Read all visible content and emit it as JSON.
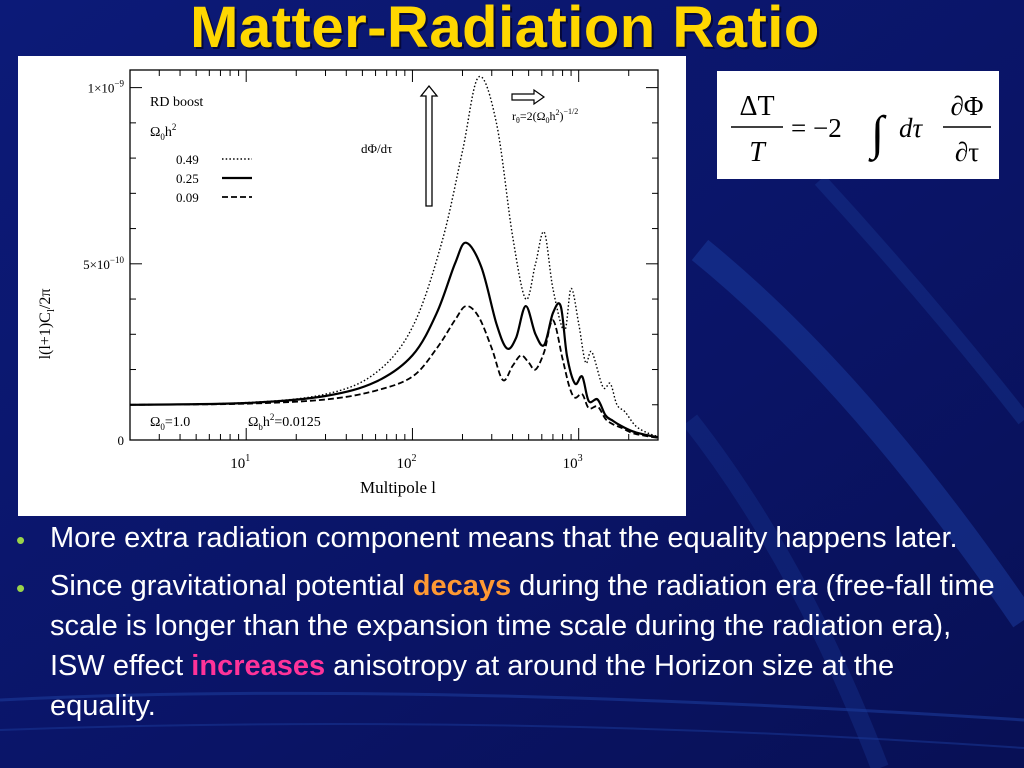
{
  "slide": {
    "title": "Matter-Radiation Ratio",
    "colors": {
      "background": "#0a1466",
      "title": "#ffd700",
      "highlight_decays": "#ff9933",
      "highlight_increases": "#ff3399",
      "bullet": "#9ad34a"
    }
  },
  "equation": {
    "lhs_num": "ΔT",
    "lhs_den": "T",
    "equals": "= −2",
    "integral": "∫",
    "dtau": "dτ",
    "rhs_num": "∂Φ",
    "rhs_den": "∂τ"
  },
  "chart_data": {
    "type": "line",
    "xlabel": "Multipole  l",
    "ylabel": "l(l+1)C",
    "ylabel_sub": "l",
    "ylabel_suffix": "/2π",
    "x_scale": "log",
    "xlim": [
      2,
      3000
    ],
    "ylim": [
      0,
      1.05e-09
    ],
    "x_ticks": [
      {
        "value": 10,
        "base": "10",
        "exp": "1"
      },
      {
        "value": 100,
        "base": "10",
        "exp": "2"
      },
      {
        "value": 1000,
        "base": "10",
        "exp": "3"
      }
    ],
    "y_ticks": [
      {
        "value": 0,
        "mantissa": "0",
        "exp": ""
      },
      {
        "value": 5e-10,
        "mantissa": "5×10",
        "exp": "−10"
      },
      {
        "value": 1e-09,
        "mantissa": "1×10",
        "exp": "−9"
      }
    ],
    "annotations": {
      "rd_boost": "RD  boost",
      "omega_h2_header": "Ω",
      "omega_h2_header_sub": "0",
      "omega_h2_header_rest": "h",
      "omega_h2_header_sup": "2",
      "dphi": "dΦ/dτ",
      "r_theta": "r",
      "r_theta_sub": "θ",
      "r_theta_eq": "=2(Ω",
      "r_theta_sub2": "0",
      "r_theta_h": "h",
      "r_theta_sup": "2",
      "r_theta_close": ")",
      "r_theta_exp": "−1/2",
      "omega0": "Ω",
      "omega0_sub": "0",
      "omega0_val": "=1.0",
      "omegab": "Ω",
      "omegab_sub": "b",
      "omegab_h": "h",
      "omegab_sup": "2",
      "omegab_val": "=0.0125"
    },
    "series": [
      {
        "name": "0.49",
        "dash": "dotted",
        "x": [
          2,
          10,
          30,
          60,
          100,
          150,
          200,
          250,
          320,
          400,
          480,
          550,
          620,
          700,
          820,
          900,
          1000,
          1100,
          1200,
          1400,
          1550,
          1700,
          1900,
          2200,
          2600,
          3000
        ],
        "y": [
          1e-10,
          1.06e-10,
          1.3e-10,
          1.9e-10,
          3.2e-10,
          5.6e-10,
          8.2e-10,
          1.03e-09,
          9e-10,
          5.8e-10,
          4e-10,
          5e-10,
          5.9e-10,
          4.3e-10,
          3.1e-10,
          4.3e-10,
          3.3e-10,
          2.2e-10,
          2.5e-10,
          1.5e-10,
          1.6e-10,
          1e-10,
          8e-11,
          4e-11,
          2e-11,
          1e-11
        ]
      },
      {
        "name": "0.25",
        "dash": "solid",
        "x": [
          2,
          10,
          30,
          60,
          100,
          140,
          180,
          210,
          260,
          320,
          370,
          420,
          480,
          550,
          620,
          700,
          780,
          850,
          950,
          1050,
          1150,
          1300,
          1450,
          1600,
          1800,
          2100,
          2500,
          3000
        ],
        "y": [
          1e-10,
          1.05e-10,
          1.25e-10,
          1.65e-10,
          2.4e-10,
          3.6e-10,
          5e-10,
          5.6e-10,
          4.9e-10,
          3.3e-10,
          2.6e-10,
          2.9e-10,
          3.8e-10,
          3e-10,
          2.7e-10,
          3.6e-10,
          3.8e-10,
          2.4e-10,
          1.6e-10,
          1.8e-10,
          1.1e-10,
          1.15e-10,
          7e-11,
          5.5e-11,
          4e-11,
          2.5e-11,
          1.5e-11,
          8e-12
        ]
      },
      {
        "name": "0.09",
        "dash": "dashed",
        "x": [
          2,
          10,
          30,
          60,
          100,
          140,
          180,
          210,
          250,
          300,
          350,
          400,
          450,
          500,
          550,
          620,
          700,
          800,
          880,
          950,
          1050,
          1150,
          1300,
          1450,
          1600,
          1800,
          2100,
          2500,
          3000
        ],
        "y": [
          1e-10,
          1.03e-10,
          1.15e-10,
          1.4e-10,
          1.8e-10,
          2.6e-10,
          3.4e-10,
          3.8e-10,
          3.5e-10,
          2.6e-10,
          1.7e-10,
          2.1e-10,
          2.4e-10,
          2.2e-10,
          2e-10,
          2.5e-10,
          3.4e-10,
          2.3e-10,
          1.5e-10,
          1.2e-10,
          1.3e-10,
          9e-11,
          9.5e-11,
          6e-11,
          4.5e-11,
          3.5e-11,
          2e-11,
          1.2e-11,
          6e-12
        ]
      }
    ]
  },
  "bullets": [
    {
      "text": "More extra radiation component  means that the equality happens later."
    },
    {
      "part1": "Since gravitational potential ",
      "hl1": "decays",
      "part2": " during the radiation era (free-fall time scale is longer than the expansion time scale during the radiation era), ISW effect ",
      "hl2": "increases",
      "part3": " anisotropy at around the Horizon size at the equality."
    }
  ]
}
